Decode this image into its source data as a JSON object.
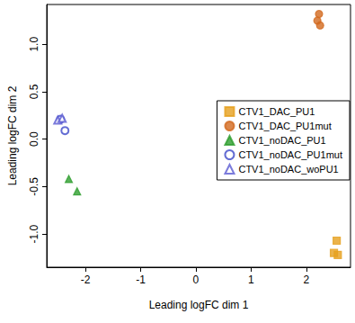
{
  "chart_data": {
    "type": "scatter",
    "x_label": "Leading logFC dim 1",
    "y_label": "Leading logFC dim 2",
    "xlim": [
      -2.7,
      2.8
    ],
    "xticks": [
      -2,
      -1,
      0,
      1,
      2
    ],
    "ylim": [
      -1.35,
      1.42
    ],
    "yticks": [
      {
        "value": -1.0,
        "label": "-1.0"
      },
      {
        "value": -0.5,
        "label": "-0.5"
      },
      {
        "value": 0,
        "label": "0.0"
      },
      {
        "value": 0.5,
        "label": "0.5"
      },
      {
        "value": 1.0,
        "label": "1.0"
      }
    ],
    "grid": false,
    "legend": "right",
    "series": [
      {
        "name": "CTV1_DAC_PU1",
        "color": "#e6a01e",
        "marker": "square",
        "x": [
          2.55,
          2.5,
          2.57
        ],
        "values": [
          -1.07,
          -1.2,
          -1.22
        ]
      },
      {
        "name": "CTV1_DAC_PU1mut",
        "color": "#d2691e",
        "marker": "circle",
        "x": [
          2.2,
          2.23,
          2.25
        ],
        "values": [
          1.25,
          1.32,
          1.2
        ]
      },
      {
        "name": "CTV1_noDAC_PU1",
        "color": "#2e9e2e",
        "marker": "triangle",
        "x": [
          -2.3,
          -2.15
        ],
        "values": [
          -0.42,
          -0.55
        ]
      },
      {
        "name": "CTV1_noDAC_PU1mut",
        "color": "#3d48c8",
        "marker": "open_circle",
        "x": [
          -2.45,
          -2.37
        ],
        "values": [
          0.21,
          0.09
        ]
      },
      {
        "name": "CTV1_noDAC_woPU1",
        "color": "#5a5ad2",
        "marker": "open_triangle",
        "x": [
          -2.5,
          -2.42
        ],
        "values": [
          0.2,
          0.22
        ]
      }
    ]
  }
}
